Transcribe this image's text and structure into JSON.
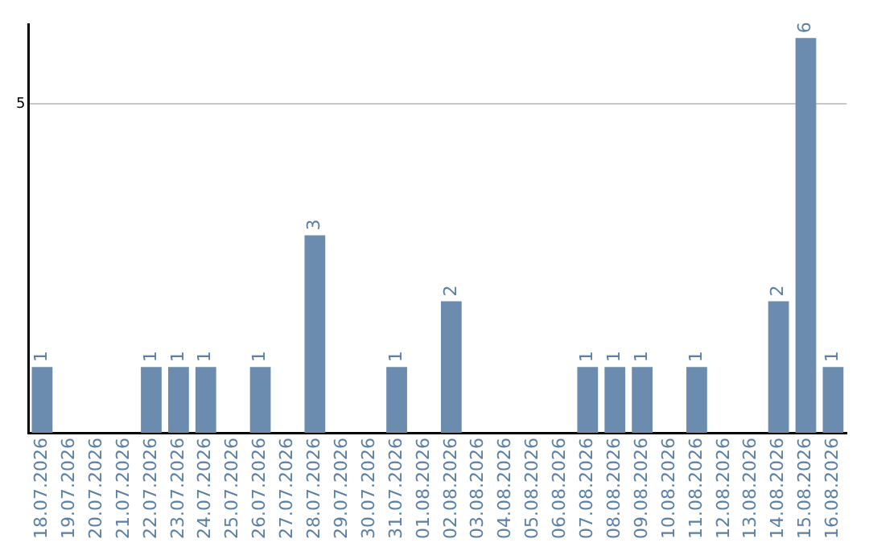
{
  "chart_data": {
    "type": "bar",
    "categories": [
      "18.07.2026",
      "19.07.2026",
      "20.07.2026",
      "21.07.2026",
      "22.07.2026",
      "23.07.2026",
      "24.07.2026",
      "25.07.2026",
      "26.07.2026",
      "27.07.2026",
      "28.07.2026",
      "29.07.2026",
      "30.07.2026",
      "31.07.2026",
      "01.08.2026",
      "02.08.2026",
      "03.08.2026",
      "04.08.2026",
      "05.08.2026",
      "06.08.2026",
      "07.08.2026",
      "08.08.2026",
      "09.08.2026",
      "10.08.2026",
      "11.08.2026",
      "12.08.2026",
      "13.08.2026",
      "14.08.2026",
      "15.08.2026",
      "16.08.2026"
    ],
    "values": [
      1,
      0,
      0,
      0,
      1,
      1,
      1,
      0,
      1,
      0,
      3,
      0,
      0,
      1,
      0,
      2,
      0,
      0,
      0,
      0,
      1,
      1,
      1,
      0,
      1,
      0,
      0,
      2,
      6,
      1
    ],
    "value_labels": [
      "1",
      null,
      null,
      null,
      "1",
      "1",
      "1",
      null,
      "1",
      null,
      "3",
      null,
      null,
      "1",
      null,
      "2",
      null,
      null,
      null,
      null,
      "1",
      "1",
      "1",
      null,
      "1",
      null,
      null,
      "2",
      "6",
      "1"
    ],
    "color": "#6b8cae",
    "ylim": [
      0,
      6.2
    ],
    "yticks": [
      5
    ],
    "grid": "y",
    "legend": false
  }
}
